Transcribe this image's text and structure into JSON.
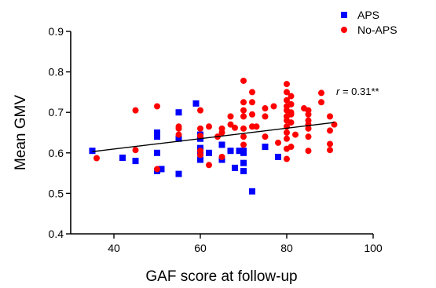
{
  "chart_data": {
    "type": "scatter",
    "title": "",
    "xlabel": "GAF score at follow-up",
    "ylabel": "Mean GMV",
    "xlim": [
      30,
      100
    ],
    "ylim": [
      0.4,
      0.9
    ],
    "xticks": [
      40,
      60,
      80,
      100
    ],
    "yticks": [
      0.4,
      0.5,
      0.6,
      0.7,
      0.8,
      0.9
    ],
    "xtick_labels": [
      "40",
      "60",
      "80",
      "100"
    ],
    "ytick_labels": [
      "0.4",
      "0.5",
      "0.6",
      "0.7",
      "0.8",
      "0.9"
    ],
    "grid": false,
    "legend_position": "top-right",
    "series": [
      {
        "name": "APS",
        "marker": "square",
        "color": "#0000ff",
        "points": [
          [
            35,
            0.605
          ],
          [
            42,
            0.588
          ],
          [
            45,
            0.58
          ],
          [
            50,
            0.65
          ],
          [
            50,
            0.64
          ],
          [
            50,
            0.6
          ],
          [
            50,
            0.555
          ],
          [
            51,
            0.56
          ],
          [
            55,
            0.7
          ],
          [
            55,
            0.548
          ],
          [
            55,
            0.635
          ],
          [
            59,
            0.722
          ],
          [
            60,
            0.645
          ],
          [
            60,
            0.635
          ],
          [
            60,
            0.612
          ],
          [
            60,
            0.6
          ],
          [
            60,
            0.583
          ],
          [
            62,
            0.6
          ],
          [
            65,
            0.62
          ],
          [
            65,
            0.583
          ],
          [
            67,
            0.605
          ],
          [
            68,
            0.563
          ],
          [
            69,
            0.605
          ],
          [
            70,
            0.6
          ],
          [
            70,
            0.575
          ],
          [
            70,
            0.555
          ],
          [
            70,
            0.605
          ],
          [
            72,
            0.505
          ],
          [
            75,
            0.615
          ],
          [
            78,
            0.59
          ]
        ]
      },
      {
        "name": "No-APS",
        "marker": "circle",
        "color": "#ff0000",
        "points": [
          [
            36,
            0.587
          ],
          [
            45,
            0.705
          ],
          [
            45,
            0.607
          ],
          [
            50,
            0.715
          ],
          [
            50,
            0.56
          ],
          [
            55,
            0.665
          ],
          [
            55,
            0.66
          ],
          [
            55,
            0.645
          ],
          [
            60,
            0.705
          ],
          [
            60,
            0.66
          ],
          [
            60,
            0.642
          ],
          [
            60,
            0.605
          ],
          [
            60,
            0.595
          ],
          [
            62,
            0.665
          ],
          [
            62,
            0.57
          ],
          [
            64,
            0.64
          ],
          [
            65,
            0.66
          ],
          [
            65,
            0.65
          ],
          [
            65,
            0.59
          ],
          [
            67,
            0.69
          ],
          [
            67,
            0.67
          ],
          [
            68,
            0.662
          ],
          [
            70,
            0.778
          ],
          [
            70,
            0.725
          ],
          [
            70,
            0.705
          ],
          [
            70,
            0.69
          ],
          [
            70,
            0.66
          ],
          [
            70,
            0.64
          ],
          [
            70,
            0.62
          ],
          [
            72,
            0.75
          ],
          [
            72,
            0.725
          ],
          [
            72,
            0.695
          ],
          [
            72,
            0.665
          ],
          [
            73,
            0.665
          ],
          [
            75,
            0.71
          ],
          [
            75,
            0.69
          ],
          [
            75,
            0.64
          ],
          [
            77,
            0.715
          ],
          [
            78,
            0.625
          ],
          [
            80,
            0.77
          ],
          [
            80,
            0.75
          ],
          [
            80,
            0.73
          ],
          [
            80,
            0.715
          ],
          [
            80,
            0.705
          ],
          [
            80,
            0.69
          ],
          [
            80,
            0.68
          ],
          [
            80,
            0.665
          ],
          [
            80,
            0.65
          ],
          [
            80,
            0.635
          ],
          [
            80,
            0.61
          ],
          [
            80,
            0.585
          ],
          [
            81,
            0.74
          ],
          [
            81,
            0.72
          ],
          [
            81,
            0.7
          ],
          [
            81,
            0.695
          ],
          [
            81,
            0.675
          ],
          [
            81,
            0.615
          ],
          [
            82,
            0.645
          ],
          [
            84,
            0.71
          ],
          [
            85,
            0.705
          ],
          [
            85,
            0.695
          ],
          [
            85,
            0.68
          ],
          [
            85,
            0.67
          ],
          [
            85,
            0.66
          ],
          [
            85,
            0.64
          ],
          [
            85,
            0.605
          ],
          [
            88,
            0.748
          ],
          [
            88,
            0.725
          ],
          [
            90,
            0.69
          ],
          [
            90,
            0.655
          ],
          [
            90,
            0.622
          ],
          [
            90,
            0.607
          ],
          [
            91,
            0.67
          ]
        ]
      }
    ],
    "fit_line": {
      "x": [
        35,
        91
      ],
      "y": [
        0.603,
        0.675
      ]
    },
    "annotation": {
      "r_symbol": "r",
      "r_value": " = 0.31**"
    }
  }
}
